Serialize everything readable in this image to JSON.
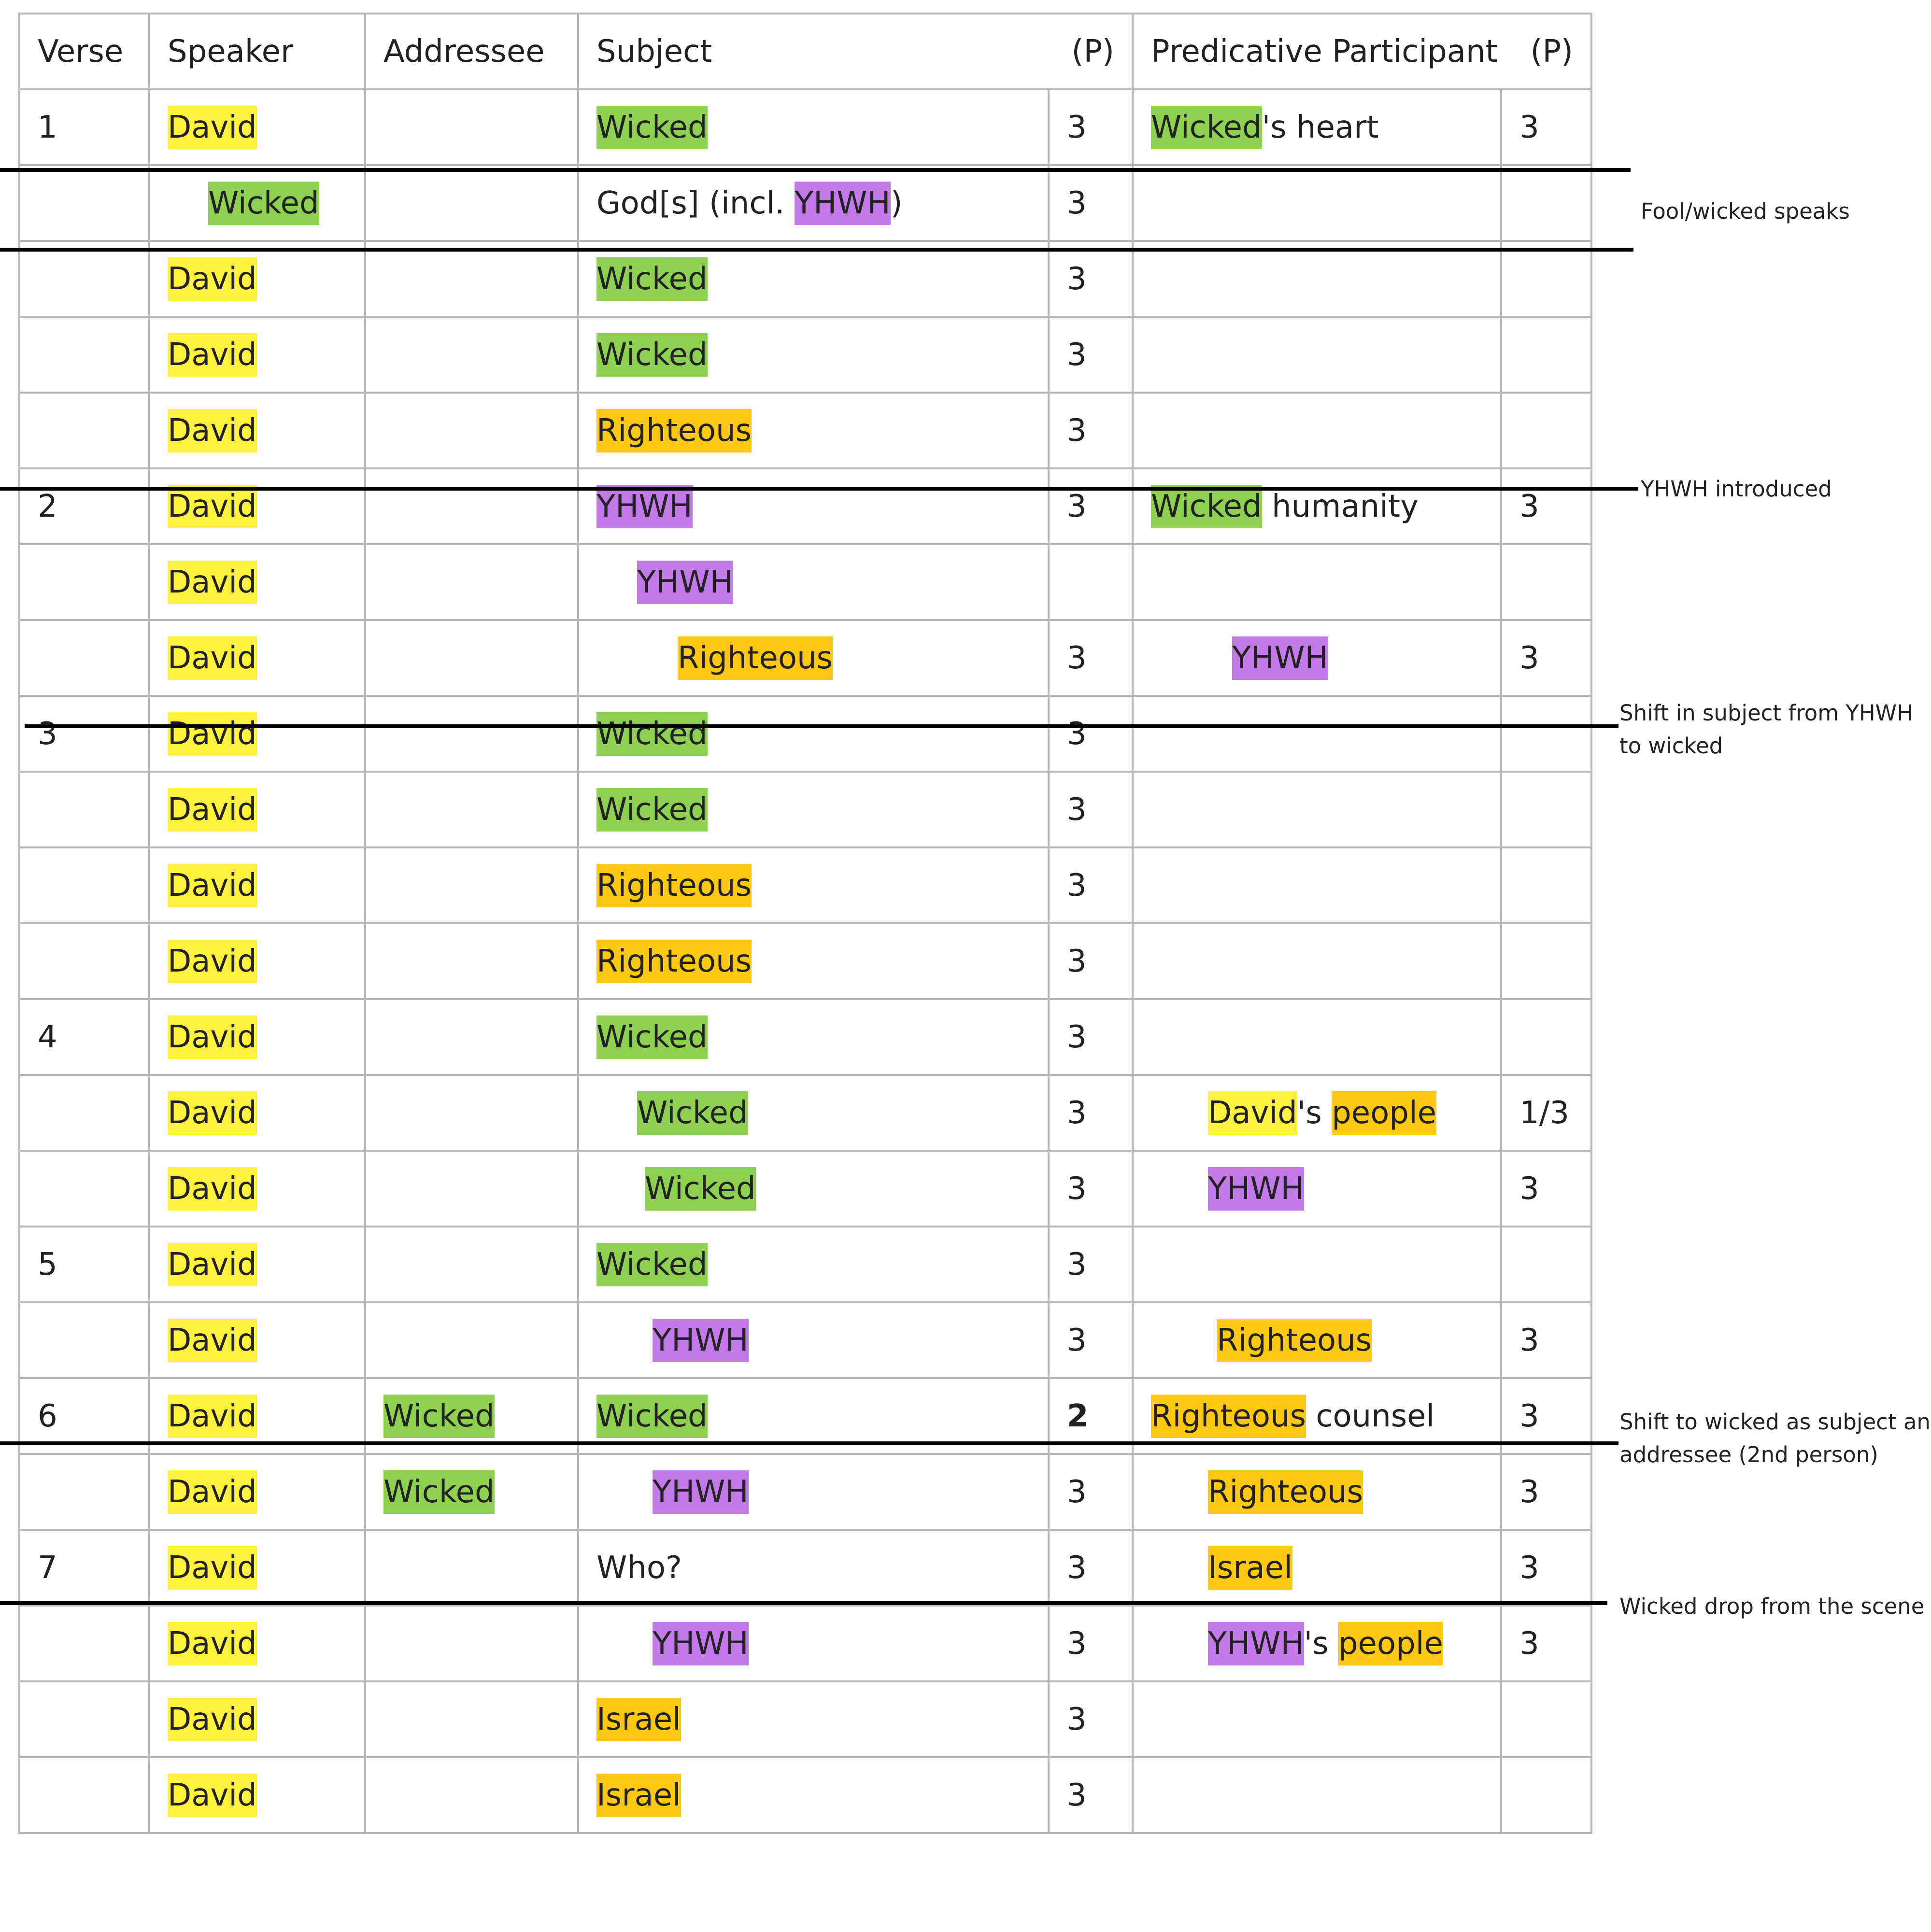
{
  "headers": {
    "verse": "Verse",
    "speaker": "Speaker",
    "addressee": "Addressee",
    "subject": "Subject",
    "subject_p": "(P)",
    "predicative": "Predicative Participant",
    "predicative_p": "(P)"
  },
  "colors": {
    "david": "#fff13d",
    "wicked": "#8ed150",
    "righteous_israel": "#fcc812",
    "yhwh": "#c379e9",
    "divider": "#000000",
    "grid": "#b7b7b7"
  },
  "rows": [
    {
      "verse": "1",
      "speaker": "David",
      "subject": "Wicked",
      "p": "3",
      "pred_a": "Wicked",
      "pred_b": "'s heart",
      "pp": "3"
    },
    {
      "verse": "",
      "speaker": "Wicked",
      "subject_a": "God[s] (incl. ",
      "subject_b": "YHWH",
      "subject_c": ")",
      "p": "3"
    },
    {
      "verse": "",
      "speaker": "David",
      "subject": "Wicked",
      "p": "3"
    },
    {
      "verse": "",
      "speaker": "David",
      "subject": "Wicked",
      "p": "3"
    },
    {
      "verse": "",
      "speaker": "David",
      "subject": "Righteous",
      "p": "3"
    },
    {
      "verse": "2",
      "speaker": "David",
      "subject": "YHWH",
      "p": "3",
      "pred_a": "Wicked",
      "pred_b": " humanity",
      "pp": "3"
    },
    {
      "verse": "",
      "speaker": "David",
      "subject": "YHWH"
    },
    {
      "verse": "",
      "speaker": "David",
      "subject": "Righteous",
      "p": "3",
      "pred": "YHWH",
      "pp": "3"
    },
    {
      "verse": "3",
      "speaker": "David",
      "subject": "Wicked",
      "p": "3"
    },
    {
      "verse": "",
      "speaker": "David",
      "subject": "Wicked",
      "p": "3"
    },
    {
      "verse": "",
      "speaker": "David",
      "subject": "Righteous",
      "p": "3"
    },
    {
      "verse": "",
      "speaker": "David",
      "subject": "Righteous",
      "p": "3"
    },
    {
      "verse": "4",
      "speaker": "David",
      "subject": "Wicked",
      "p": "3"
    },
    {
      "verse": "",
      "speaker": "David",
      "subject": "Wicked",
      "p": "3",
      "pred_a": "David",
      "pred_b": "'s ",
      "pred_c": "people",
      "pp": "1/3"
    },
    {
      "verse": "",
      "speaker": "David",
      "subject": "Wicked",
      "p": "3",
      "pred": "YHWH",
      "pp": "3"
    },
    {
      "verse": "5",
      "speaker": "David",
      "subject": "Wicked",
      "p": "3"
    },
    {
      "verse": "",
      "speaker": "David",
      "subject": "YHWH",
      "p": "3",
      "pred": "Righteous",
      "pp": "3"
    },
    {
      "verse": "6",
      "speaker": "David",
      "addressee": "Wicked",
      "subject": "Wicked",
      "p": "2",
      "pred_a": "Righteous",
      "pred_b": " counsel",
      "pp": "3"
    },
    {
      "verse": "",
      "speaker": "David",
      "addressee": "Wicked",
      "subject": "YHWH",
      "p": "3",
      "pred": "Righteous",
      "pp": "3"
    },
    {
      "verse": "7",
      "speaker": "David",
      "subject": "Who?",
      "p": "3",
      "pred": "Israel",
      "pp": "3"
    },
    {
      "verse": "",
      "speaker": "David",
      "subject": "YHWH",
      "p": "3",
      "pred_a": "YHWH",
      "pred_b": "'s ",
      "pred_c": "people",
      "pp": "3"
    },
    {
      "verse": "",
      "speaker": "David",
      "subject": "Israel",
      "p": "3"
    },
    {
      "verse": "",
      "speaker": "David",
      "subject": "Israel",
      "p": "3"
    }
  ],
  "notes": {
    "fool_speaks": "Fool/wicked speaks",
    "yhwh_introduced": "YHWH introduced",
    "shift_subject_1": "Shift in subject from YHWH",
    "shift_subject_2": "to wicked",
    "shift_addressee_1": "Shift to wicked as subject and",
    "shift_addressee_2": "addressee (2nd person)",
    "wicked_drop": "Wicked drop from the scene"
  }
}
